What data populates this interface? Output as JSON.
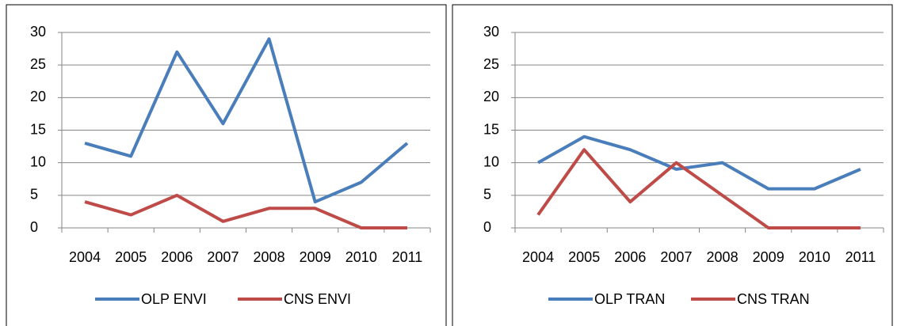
{
  "chart_data": [
    {
      "type": "line",
      "categories": [
        "2004",
        "2005",
        "2006",
        "2007",
        "2008",
        "2009",
        "2010",
        "2011"
      ],
      "series": [
        {
          "name": "OLP ENVI",
          "color": "#4a7ebb",
          "values": [
            13,
            11,
            27,
            16,
            29,
            4,
            7,
            13
          ]
        },
        {
          "name": "CNS ENVI",
          "color": "#be4b48",
          "values": [
            4,
            2,
            5,
            1,
            3,
            3,
            0,
            0
          ]
        }
      ],
      "ylim": [
        0,
        30
      ],
      "yticks": [
        0,
        5,
        10,
        15,
        20,
        25,
        30
      ],
      "grid": true,
      "legend": "bottom"
    },
    {
      "type": "line",
      "categories": [
        "2004",
        "2005",
        "2006",
        "2007",
        "2008",
        "2009",
        "2010",
        "2011"
      ],
      "series": [
        {
          "name": "OLP TRAN",
          "color": "#4a7ebb",
          "values": [
            10,
            14,
            12,
            9,
            10,
            6,
            6,
            9
          ]
        },
        {
          "name": "CNS TRAN",
          "color": "#be4b48",
          "values": [
            2,
            12,
            4,
            10,
            5,
            0,
            0,
            0
          ]
        }
      ],
      "ylim": [
        0,
        30
      ],
      "yticks": [
        0,
        5,
        10,
        15,
        20,
        25,
        30
      ],
      "grid": true,
      "legend": "bottom"
    }
  ]
}
